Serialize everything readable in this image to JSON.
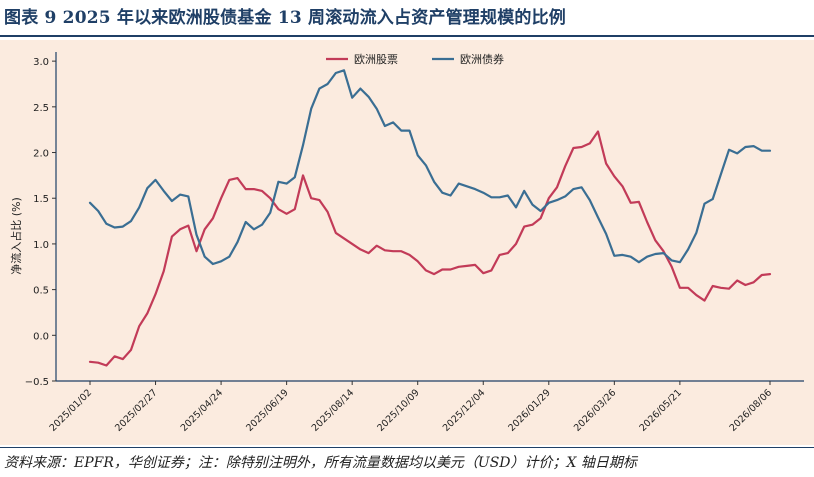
{
  "title": "图表 9   2025 年以来欧洲股债基金 13 周滚动流入占资产管理规模的比例",
  "source": "资料来源：EPFR，华创证券；注：除特别注明外，所有流量数据均以美元（USD）计价；X 轴日期标",
  "colors": {
    "equity": "#c23b58",
    "bond": "#3a6e93",
    "plot_bg": "#fbebdf",
    "frame": "#1f3f66"
  },
  "chart_data": {
    "type": "line",
    "title": "",
    "xlabel": "",
    "ylabel": "净流入占比 (%)",
    "ylim": [
      -0.5,
      3.1
    ],
    "yticks": [
      "3.0",
      "2.5",
      "2.0",
      "1.5",
      "1.0",
      "0.5",
      "0.0",
      "−0.5"
    ],
    "ytick_values": [
      3.0,
      2.5,
      2.0,
      1.5,
      1.0,
      0.5,
      0.0,
      -0.5
    ],
    "xticks": [
      "2025/01/02",
      "2025/02/27",
      "2025/04/24",
      "2025/06/19",
      "2025/08/14",
      "2025/10/09",
      "2025/12/04",
      "2026/01/29",
      "2026/03/26",
      "2026/05/21",
      "2026/08/06"
    ],
    "grid": false,
    "legend": "top-center",
    "x_index": "weekly observations starting 2025/01/02",
    "series": [
      {
        "name": "欧洲股票",
        "color": "#c23b58",
        "values": [
          -0.29,
          -0.3,
          -0.33,
          -0.23,
          -0.26,
          -0.16,
          0.1,
          0.24,
          0.45,
          0.7,
          1.08,
          1.16,
          1.2,
          0.92,
          1.16,
          1.28,
          1.5,
          1.7,
          1.72,
          1.6,
          1.6,
          1.58,
          1.5,
          1.38,
          1.33,
          1.38,
          1.75,
          1.5,
          1.48,
          1.35,
          1.12,
          1.06,
          1.0,
          0.94,
          0.9,
          0.98,
          0.93,
          0.92,
          0.92,
          0.88,
          0.81,
          0.71,
          0.67,
          0.72,
          0.72,
          0.75,
          0.76,
          0.77,
          0.68,
          0.71,
          0.88,
          0.9,
          1.0,
          1.19,
          1.21,
          1.28,
          1.5,
          1.62,
          1.85,
          2.05,
          2.06,
          2.1,
          2.23,
          1.88,
          1.74,
          1.63,
          1.45,
          1.46,
          1.24,
          1.04,
          0.92,
          0.75,
          0.52,
          0.52,
          0.44,
          0.38,
          0.54,
          0.52,
          0.51,
          0.6,
          0.55,
          0.58,
          0.66,
          0.67
        ]
      },
      {
        "name": "欧洲债券",
        "color": "#3a6e93",
        "values": [
          1.45,
          1.36,
          1.22,
          1.18,
          1.19,
          1.25,
          1.4,
          1.61,
          1.7,
          1.58,
          1.47,
          1.54,
          1.52,
          1.1,
          0.86,
          0.78,
          0.81,
          0.86,
          1.02,
          1.24,
          1.16,
          1.21,
          1.34,
          1.68,
          1.66,
          1.73,
          2.08,
          2.48,
          2.7,
          2.75,
          2.87,
          2.9,
          2.6,
          2.7,
          2.61,
          2.48,
          2.29,
          2.33,
          2.24,
          2.24,
          1.97,
          1.86,
          1.68,
          1.56,
          1.53,
          1.66,
          1.63,
          1.6,
          1.56,
          1.51,
          1.51,
          1.53,
          1.4,
          1.58,
          1.43,
          1.36,
          1.45,
          1.48,
          1.52,
          1.6,
          1.62,
          1.48,
          1.29,
          1.11,
          0.87,
          0.88,
          0.86,
          0.8,
          0.86,
          0.89,
          0.9,
          0.82,
          0.8,
          0.94,
          1.12,
          1.44,
          1.49,
          1.76,
          2.03,
          1.99,
          2.06,
          2.07,
          2.02,
          2.02
        ]
      }
    ]
  }
}
